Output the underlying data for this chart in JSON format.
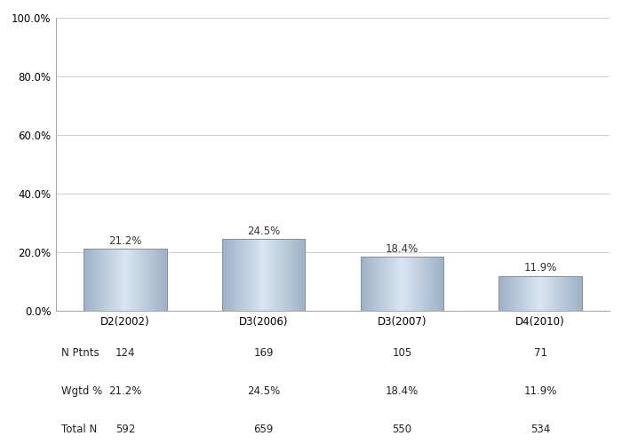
{
  "categories": [
    "D2(2002)",
    "D3(2006)",
    "D3(2007)",
    "D4(2010)"
  ],
  "values": [
    21.2,
    24.5,
    18.4,
    11.9
  ],
  "n_ptnts": [
    124,
    169,
    105,
    71
  ],
  "wgtd_pct": [
    "21.2%",
    "24.5%",
    "18.4%",
    "11.9%"
  ],
  "total_n": [
    592,
    659,
    550,
    534
  ],
  "ylim": [
    0,
    100
  ],
  "yticks": [
    0,
    20,
    40,
    60,
    80,
    100
  ],
  "ytick_labels": [
    "0.0%",
    "20.0%",
    "40.0%",
    "60.0%",
    "80.0%",
    "100.0%"
  ],
  "background_color": "#ffffff",
  "plot_bg_color": "#ffffff",
  "grid_color": "#d0d0d0",
  "tick_fontsize": 8.5,
  "table_fontsize": 8.5,
  "bar_value_fontsize": 8.5,
  "row_labels": [
    "N Ptnts",
    "Wgtd %",
    "Total N"
  ],
  "fig_width": 7.0,
  "fig_height": 5.0,
  "bar_width": 0.6
}
